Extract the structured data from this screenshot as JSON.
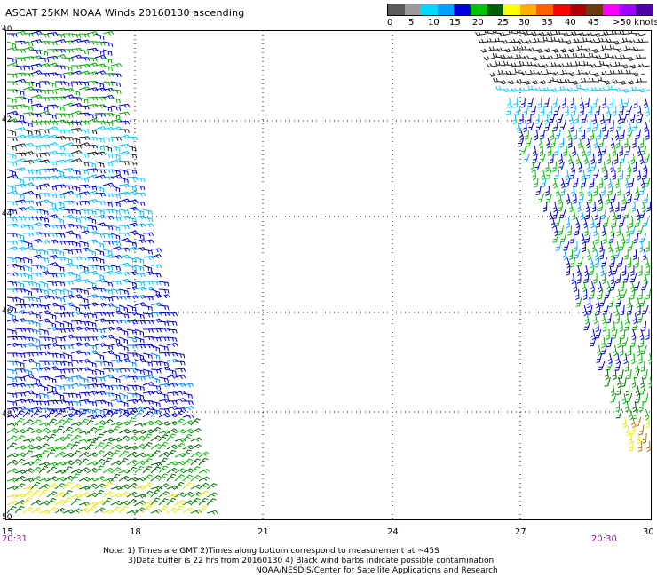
{
  "title": "ASCAT 25KM NOAA Winds 20160130 ascending",
  "legend": {
    "colors": [
      "#5a5a5a",
      "#9a9a9a",
      "#00d8ff",
      "#00a0ff",
      "#0000e0",
      "#00c000",
      "#006000",
      "#ffff00",
      "#ffb000",
      "#ff6000",
      "#ff0000",
      "#b00000",
      "#6a3a10",
      "#ff00ff",
      "#a000ff",
      "#5000a0"
    ],
    "labels": [
      "0",
      "5",
      "10",
      "15",
      "20",
      "25",
      "30",
      "35",
      "40",
      "45",
      ">50 knots"
    ]
  },
  "axes": {
    "y_labels": [
      "40",
      "42",
      "44",
      "46",
      "48",
      "50"
    ],
    "x_labels": [
      "15",
      "18",
      "21",
      "24",
      "27",
      "30"
    ]
  },
  "times": {
    "left": "20:31",
    "right": "20:30"
  },
  "notes": {
    "line1": "Note: 1) Times are GMT 2)Times along bottom correspond to measurement at ~45S",
    "line2": "3)Data buffer is 22 hrs from 20160130 4) Black wind barbs indicate possible contamination",
    "line3": "NOAA/NESDIS/Center for Satellite Applications and Research"
  }
}
